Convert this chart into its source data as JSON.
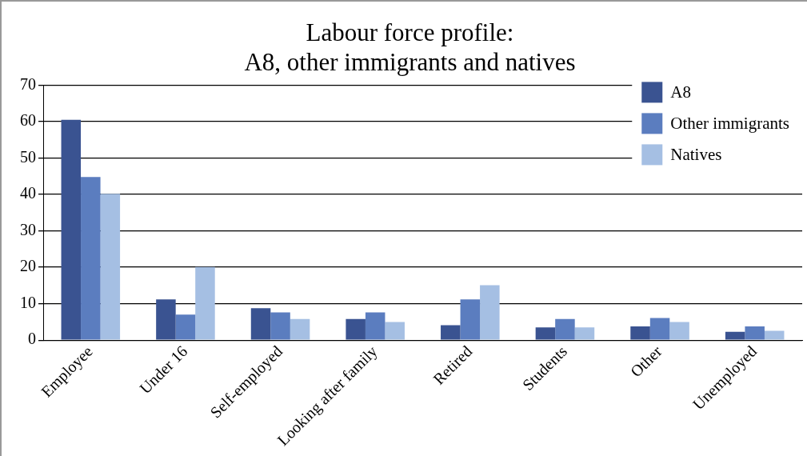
{
  "chart_data": {
    "type": "bar",
    "title": [
      "Labour force profile:",
      "A8, other immigrants and natives"
    ],
    "categories": [
      "Employee",
      "Under 16",
      "Self-employed",
      "Looking after family",
      "Retired",
      "Students",
      "Other",
      "Unemployed"
    ],
    "series": [
      {
        "name": "A8",
        "color": "#3a5391",
        "values": [
          60.5,
          11.2,
          8.8,
          5.8,
          4.1,
          3.5,
          3.8,
          2.3
        ]
      },
      {
        "name": "Other immigrants",
        "color": "#5b7dbf",
        "values": [
          44.8,
          7.0,
          7.6,
          7.6,
          11.2,
          5.8,
          6.1,
          3.8
        ]
      },
      {
        "name": "Natives",
        "color": "#a5bfe3",
        "values": [
          40.2,
          20.1,
          5.8,
          5.0,
          15.1,
          3.5,
          5.0,
          2.6
        ]
      }
    ],
    "ylim": [
      0,
      70
    ],
    "yticks": [
      0,
      10,
      20,
      30,
      40,
      50,
      60,
      70
    ],
    "grid": "y",
    "legend": "top right"
  }
}
